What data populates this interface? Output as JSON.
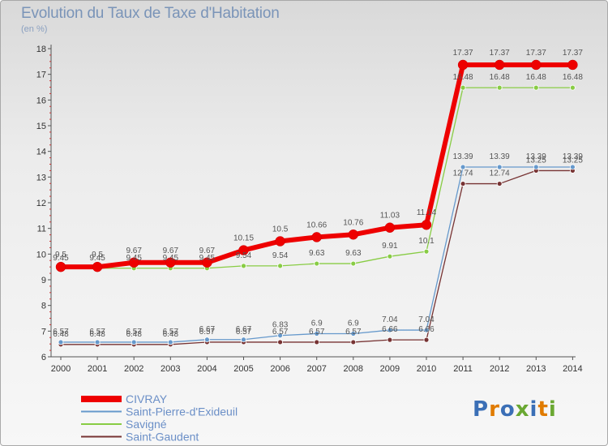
{
  "title": "Evolution du Taux de Taxe d'Habitation",
  "subtitle": "(en %)",
  "logo": "Proxiti",
  "chart_data": {
    "type": "line",
    "title": "Evolution du Taux de Taxe d'Habitation",
    "ylabel": "(en %)",
    "xlabel": "",
    "x": [
      "2000",
      "2001",
      "2002",
      "2003",
      "2004",
      "2005",
      "2006",
      "2007",
      "2008",
      "2009",
      "2010",
      "2011",
      "2012",
      "2013",
      "2014"
    ],
    "ylim": [
      6,
      18
    ],
    "yticks": [
      "6",
      "7",
      "8",
      "9",
      "10",
      "11",
      "12",
      "13",
      "14",
      "15",
      "16",
      "17",
      "18"
    ],
    "grid": false,
    "legend_position": "bottom-left",
    "series": [
      {
        "name": "CIVRAY",
        "color": "#ee0000",
        "values": [
          9.5,
          9.5,
          9.67,
          9.67,
          9.67,
          10.15,
          10.5,
          10.66,
          10.76,
          11.03,
          11.14,
          17.37,
          17.37,
          17.37,
          17.37
        ],
        "labels": [
          "9.5",
          "9.5",
          "9.67",
          "9.67",
          "9.67",
          "10.15",
          "10.5",
          "10.66",
          "10.76",
          "11.03",
          "11.14",
          "17.37",
          "17.37",
          "17.37",
          "17.37"
        ]
      },
      {
        "name": "Saint-Pierre-d'Exideuil",
        "color": "#6699cc",
        "values": [
          6.57,
          6.57,
          6.57,
          6.57,
          6.67,
          6.67,
          6.83,
          6.9,
          6.9,
          7.04,
          7.04,
          13.39,
          13.39,
          13.39,
          13.39
        ],
        "labels": [
          "6.57",
          "6.57",
          "6.57",
          "6.57",
          "6.67",
          "6.67",
          "6.83",
          "6.9",
          "6.9",
          "7.04",
          "7.04",
          "13.39",
          "13.39",
          "13.39",
          "13.39"
        ]
      },
      {
        "name": "Savigné",
        "color": "#88cc44",
        "values": [
          9.45,
          9.45,
          9.45,
          9.45,
          9.45,
          9.54,
          9.54,
          9.63,
          9.63,
          9.91,
          10.1,
          16.48,
          16.48,
          16.48,
          16.48
        ],
        "labels": [
          "9.45",
          "9.45",
          "9.45",
          "9.45",
          "9.45",
          "9.54",
          "9.54",
          "9.63",
          "9.63",
          "9.91",
          "10.1",
          "16.48",
          "16.48",
          "16.48",
          "16.48"
        ]
      },
      {
        "name": "Saint-Gaudent",
        "color": "#773333",
        "values": [
          6.48,
          6.48,
          6.48,
          6.48,
          6.57,
          6.57,
          6.57,
          6.57,
          6.57,
          6.66,
          6.66,
          12.74,
          12.74,
          13.25,
          13.25
        ],
        "labels": [
          "6.48",
          "6.48",
          "6.48",
          "6.48",
          "6.57",
          "6.57",
          "6.57",
          "6.57",
          "6.57",
          "6.66",
          "6.66",
          "12.74",
          "12.74",
          "13.25",
          "13.25"
        ]
      }
    ]
  }
}
